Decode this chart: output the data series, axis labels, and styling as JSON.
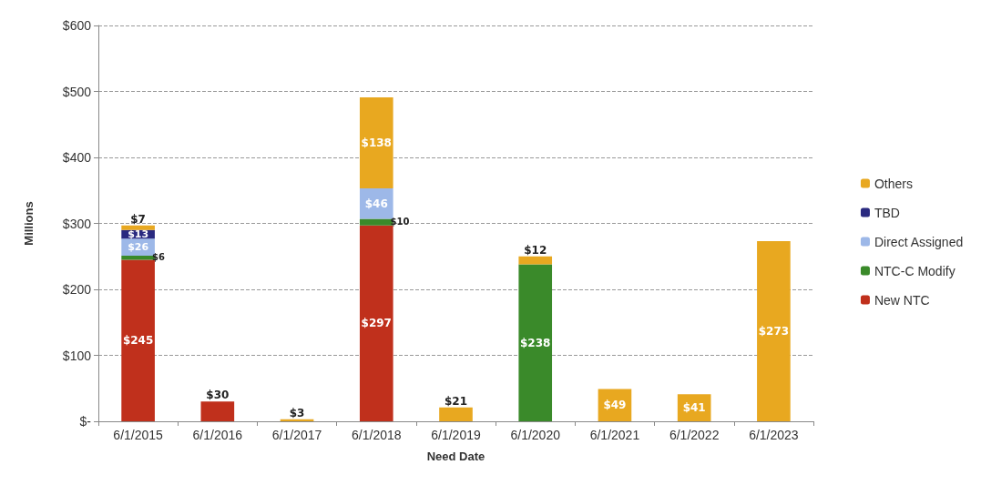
{
  "chart_data": {
    "type": "bar",
    "stacked": true,
    "xlabel": "Need Date",
    "ylabel": "Millions",
    "categories": [
      "6/1/2015",
      "6/1/2016",
      "6/1/2017",
      "6/1/2018",
      "6/1/2019",
      "6/1/2020",
      "6/1/2021",
      "6/1/2022",
      "6/1/2023"
    ],
    "series": [
      {
        "name": "New NTC",
        "color": "#c0301c",
        "values": [
          245,
          30,
          null,
          297,
          null,
          null,
          null,
          null,
          null
        ],
        "value_labels": [
          "$245",
          "$30",
          null,
          "$297",
          null,
          null,
          null,
          null,
          null
        ]
      },
      {
        "name": "NTC-C Modify",
        "color": "#3a8a2a",
        "values": [
          6,
          null,
          null,
          10,
          null,
          238,
          null,
          null,
          null
        ],
        "value_labels": [
          "$6",
          null,
          null,
          "$10",
          null,
          "$238",
          null,
          null,
          null
        ]
      },
      {
        "name": "Direct Assigned",
        "color": "#9db8e8",
        "values": [
          26,
          null,
          null,
          46,
          null,
          null,
          null,
          null,
          null
        ],
        "value_labels": [
          "$26",
          null,
          null,
          "$46",
          null,
          null,
          null,
          null,
          null
        ]
      },
      {
        "name": "TBD",
        "color": "#2a2a80",
        "values": [
          13,
          null,
          null,
          null,
          null,
          null,
          null,
          null,
          null
        ],
        "value_labels": [
          "$13",
          null,
          null,
          null,
          null,
          null,
          null,
          null,
          null
        ]
      },
      {
        "name": "Others",
        "color": "#e8a820",
        "values": [
          7,
          null,
          3,
          138,
          21,
          12,
          49,
          41,
          273
        ],
        "value_labels": [
          "$7",
          null,
          "$3",
          "$138",
          "$21",
          "$12",
          "$49",
          "$41",
          "$273"
        ]
      }
    ],
    "ylim": [
      0,
      600
    ],
    "yticks": [
      {
        "value": 0,
        "label": "$-"
      },
      {
        "value": 100,
        "label": "$100"
      },
      {
        "value": 200,
        "label": "$200"
      },
      {
        "value": 300,
        "label": "$300"
      },
      {
        "value": 400,
        "label": "$400"
      },
      {
        "value": 500,
        "label": "$500"
      },
      {
        "value": 600,
        "label": "$600"
      }
    ],
    "grid": "y",
    "legend": "right"
  }
}
